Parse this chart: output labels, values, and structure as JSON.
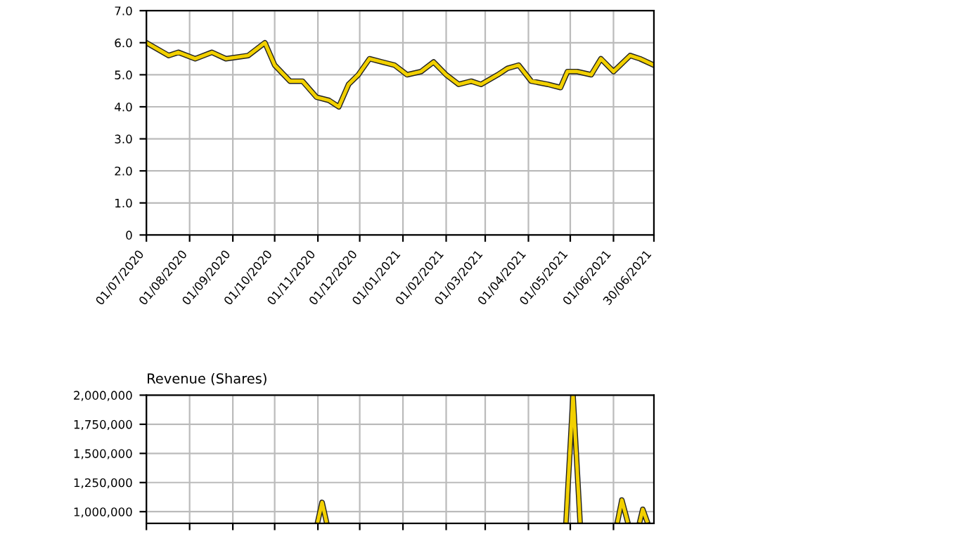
{
  "chart_data": [
    {
      "type": "line",
      "grid": true,
      "marker": "none",
      "line_style": "solid",
      "x": [
        "2020-07-01",
        "2020-07-17",
        "2020-07-24",
        "2020-08-05",
        "2020-08-17",
        "2020-08-27",
        "2020-09-12",
        "2020-09-24",
        "2020-10-01",
        "2020-10-12",
        "2020-10-21",
        "2020-10-31",
        "2020-11-09",
        "2020-11-16",
        "2020-11-23",
        "2020-11-30",
        "2020-12-08",
        "2020-12-17",
        "2020-12-26",
        "2021-01-04",
        "2021-01-14",
        "2021-01-23",
        "2021-02-01",
        "2021-02-10",
        "2021-02-19",
        "2021-02-26",
        "2021-03-10",
        "2021-03-17",
        "2021-03-25",
        "2021-04-03",
        "2021-04-15",
        "2021-04-24",
        "2021-04-29",
        "2021-05-06",
        "2021-05-16",
        "2021-05-23",
        "2021-06-01",
        "2021-06-13",
        "2021-06-20",
        "2021-06-30"
      ],
      "series": [
        {
          "color": "#f2d000",
          "values": [
            6.0,
            5.6,
            5.7,
            5.5,
            5.7,
            5.5,
            5.6,
            6.0,
            5.3,
            4.8,
            4.8,
            4.3,
            4.2,
            4.0,
            4.7,
            5.0,
            5.5,
            5.4,
            5.3,
            5.0,
            5.1,
            5.4,
            5.0,
            4.7,
            4.8,
            4.7,
            5.0,
            5.2,
            5.3,
            4.8,
            4.7,
            4.6,
            5.1,
            5.1,
            5.0,
            5.5,
            5.1,
            5.6,
            5.5,
            5.3
          ]
        }
      ],
      "xlim": [
        "2020-07-01",
        "2021-06-30"
      ],
      "xticks": [
        {
          "value": "2020-07-01",
          "label": "01/07/2020"
        },
        {
          "value": "2020-08-01",
          "label": "01/08/2020"
        },
        {
          "value": "2020-09-01",
          "label": "01/09/2020"
        },
        {
          "value": "2020-10-01",
          "label": "01/10/2020"
        },
        {
          "value": "2020-11-01",
          "label": "01/11/2020"
        },
        {
          "value": "2020-12-01",
          "label": "01/12/2020"
        },
        {
          "value": "2021-01-01",
          "label": "01/01/2021"
        },
        {
          "value": "2021-02-01",
          "label": "01/02/2021"
        },
        {
          "value": "2021-03-01",
          "label": "01/03/2021"
        },
        {
          "value": "2021-04-01",
          "label": "01/04/2021"
        },
        {
          "value": "2021-05-01",
          "label": "01/05/2021"
        },
        {
          "value": "2021-06-01",
          "label": "01/06/2021"
        },
        {
          "value": "2021-06-30",
          "label": "30/06/2021"
        }
      ],
      "ylim": [
        0,
        7
      ],
      "yticks": [
        0,
        {
          "value": 1,
          "label": "1.0"
        },
        {
          "value": 2,
          "label": "2.0"
        },
        {
          "value": 3,
          "label": "3.0"
        },
        {
          "value": 4,
          "label": "4.0"
        },
        {
          "value": 5,
          "label": "5.0"
        },
        {
          "value": 6,
          "label": "6.0"
        },
        {
          "value": 7,
          "label": "7.0"
        }
      ]
    },
    {
      "type": "line",
      "title": "Revenue (Shares)",
      "grid": true,
      "marker": "none",
      "line_style": "solid",
      "tick_labels": "y",
      "x": [
        "2020-11-01",
        "2020-11-04",
        "2020-11-07",
        "2021-01-01",
        "2021-04-28",
        "2021-05-03",
        "2021-05-08",
        "2021-05-20",
        "2021-06-04",
        "2021-06-07",
        "2021-06-11",
        "2021-06-15",
        "2021-06-20",
        "2021-06-22",
        "2021-06-25"
      ],
      "series": [
        {
          "color": "#f2d000",
          "values": [
            920000,
            1080000,
            920000,
            null,
            920000,
            2000000,
            920000,
            null,
            920000,
            1100000,
            920000,
            null,
            920000,
            1020000,
            920000
          ]
        }
      ],
      "xlim": [
        "2020-07-01",
        "2021-06-30"
      ],
      "ylim": [
        900000,
        2000000
      ],
      "yticks": [
        {
          "value": 1000000,
          "label": "1,000,000"
        },
        {
          "value": 1250000,
          "label": "1,250,000"
        },
        {
          "value": 1500000,
          "label": "1,500,000"
        },
        {
          "value": 1750000,
          "label": "1,750,000"
        },
        {
          "value": 2000000,
          "label": "2,000,000"
        }
      ]
    }
  ]
}
